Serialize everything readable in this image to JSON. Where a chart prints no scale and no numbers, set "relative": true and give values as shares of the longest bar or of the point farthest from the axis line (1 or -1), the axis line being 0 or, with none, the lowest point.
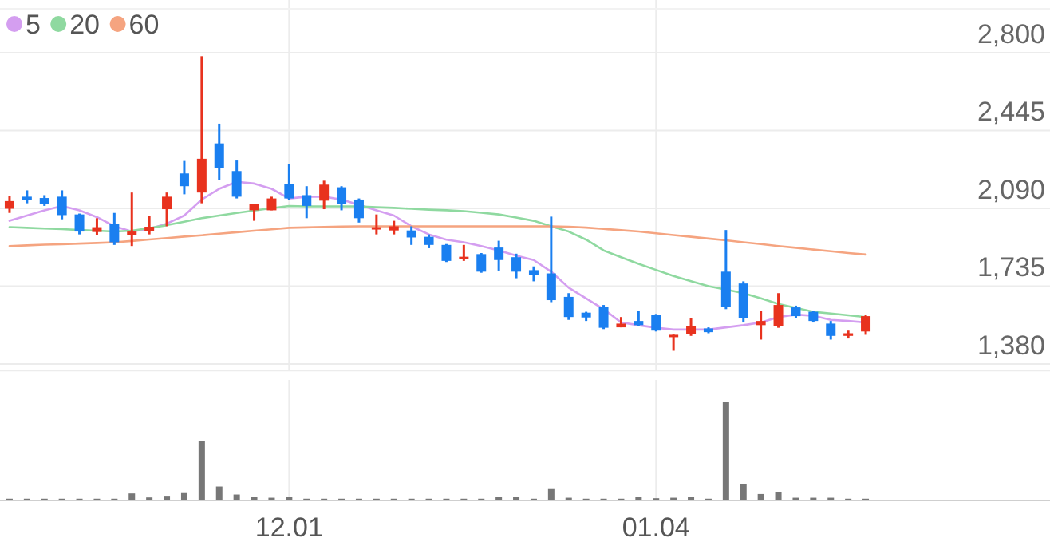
{
  "chart_data": [
    {
      "type": "candlestick",
      "categories": [
        null,
        null,
        null,
        null,
        null,
        null,
        null,
        null,
        null,
        null,
        null,
        null,
        null,
        null,
        null,
        null,
        "12.01",
        null,
        null,
        null,
        null,
        null,
        null,
        null,
        null,
        null,
        null,
        null,
        null,
        null,
        null,
        null,
        null,
        null,
        null,
        null,
        null,
        "01.04",
        null,
        null,
        null,
        null,
        null,
        null,
        null,
        null,
        null,
        null,
        null,
        null
      ],
      "ohlc": [
        [
          2088,
          2147,
          2069,
          2123
        ],
        [
          2143,
          2172,
          2113,
          2128
        ],
        [
          2137,
          2150,
          2101,
          2110
        ],
        [
          2143,
          2172,
          2040,
          2059
        ],
        [
          2062,
          2066,
          1971,
          1984
        ],
        [
          1982,
          2045,
          1967,
          2004
        ],
        [
          2020,
          2069,
          1923,
          1935
        ],
        [
          1967,
          2162,
          1918,
          1984
        ],
        [
          1986,
          2057,
          1971,
          2006
        ],
        [
          2086,
          2162,
          2008,
          2143
        ],
        [
          2249,
          2306,
          2154,
          2191
        ],
        [
          2162,
          2784,
          2113,
          2316
        ],
        [
          2386,
          2476,
          2220,
          2274
        ],
        [
          2260,
          2308,
          2135,
          2143
        ],
        [
          2081,
          2108,
          2033,
          2108
        ],
        [
          2081,
          2143,
          2081,
          2135
        ],
        [
          2201,
          2291,
          2128,
          2135
        ],
        [
          2150,
          2191,
          2045,
          2101
        ],
        [
          2125,
          2216,
          2086,
          2198
        ],
        [
          2186,
          2191,
          2081,
          2110
        ],
        [
          2130,
          2135,
          2025,
          2045
        ],
        [
          1996,
          2062,
          1971,
          2004
        ],
        [
          1989,
          2033,
          1971,
          2008
        ],
        [
          1989,
          2008,
          1923,
          1957
        ],
        [
          1960,
          1971,
          1908,
          1923
        ],
        [
          1923,
          1927,
          1845,
          1850
        ],
        [
          1859,
          1923,
          1850,
          1869
        ],
        [
          1881,
          1886,
          1796,
          1801
        ],
        [
          1911,
          1942,
          1806,
          1854
        ],
        [
          1867,
          1883,
          1771,
          1801
        ],
        [
          1808,
          1825,
          1757,
          1784
        ],
        [
          1793,
          2052,
          1662,
          1671
        ],
        [
          1686,
          1703,
          1581,
          1594
        ],
        [
          1614,
          1618,
          1576,
          1592
        ],
        [
          1642,
          1649,
          1539,
          1545
        ],
        [
          1547,
          1594,
          1547,
          1564
        ],
        [
          1576,
          1623,
          1552,
          1557
        ],
        [
          1605,
          1608,
          1528,
          1532
        ],
        [
          1511,
          1514,
          1440,
          1513
        ],
        [
          1515,
          1588,
          1508,
          1552
        ],
        [
          1542,
          1547,
          1520,
          1525
        ],
        [
          1801,
          1991,
          1630,
          1642
        ],
        [
          1747,
          1757,
          1569,
          1588
        ],
        [
          1557,
          1623,
          1491,
          1576
        ],
        [
          1552,
          1703,
          1545,
          1649
        ],
        [
          1638,
          1646,
          1588,
          1598
        ],
        [
          1618,
          1621,
          1569,
          1576
        ],
        [
          1564,
          1576,
          1491,
          1508
        ],
        [
          1508,
          1532,
          1496,
          1520
        ],
        [
          1528,
          1605,
          1513,
          1598
        ]
      ],
      "colors": [
        "#e8321e",
        "#1a7ff0",
        "#1a7ff0",
        "#1a7ff0",
        "#1a7ff0",
        "#e8321e",
        "#1a7ff0",
        "#e8321e",
        "#e8321e",
        "#e8321e",
        "#1a7ff0",
        "#e8321e",
        "#1a7ff0",
        "#1a7ff0",
        "#e8321e",
        "#e8321e",
        "#1a7ff0",
        "#1a7ff0",
        "#e8321e",
        "#1a7ff0",
        "#1a7ff0",
        "#e8321e",
        "#e8321e",
        "#1a7ff0",
        "#1a7ff0",
        "#1a7ff0",
        "#e8321e",
        "#1a7ff0",
        "#1a7ff0",
        "#1a7ff0",
        "#1a7ff0",
        "#1a7ff0",
        "#1a7ff0",
        "#1a7ff0",
        "#1a7ff0",
        "#e8321e",
        "#1a7ff0",
        "#1a7ff0",
        "#e8321e",
        "#e8321e",
        "#1a7ff0",
        "#1a7ff0",
        "#1a7ff0",
        "#e8321e",
        "#e8321e",
        "#1a7ff0",
        "#1a7ff0",
        "#1a7ff0",
        "#e8321e",
        "#e8321e"
      ],
      "series": [
        {
          "name": "5",
          "type": "line",
          "color": "#d49ef0",
          "values": [
            2033,
            2057,
            2081,
            2101,
            2081,
            2050,
            2008,
            1984,
            1996,
            2020,
            2057,
            2130,
            2179,
            2211,
            2203,
            2179,
            2135,
            2143,
            2143,
            2130,
            2106,
            2081,
            2057,
            2008,
            1971,
            1947,
            1935,
            1918,
            1898,
            1874,
            1854,
            1801,
            1728,
            1679,
            1630,
            1569,
            1557,
            1545,
            1537,
            1537,
            1537,
            1547,
            1557,
            1569,
            1594,
            1605,
            1600,
            1581,
            1576,
            1569
          ]
        },
        {
          "name": "20",
          "type": "line",
          "color": "#8fd9a0",
          "values": [
            2004,
            2001,
            1998,
            1995,
            1991,
            1988,
            1984,
            1988,
            2000,
            2013,
            2029,
            2045,
            2057,
            2069,
            2080,
            2091,
            2101,
            2099,
            2099,
            2099,
            2099,
            2095,
            2092,
            2088,
            2084,
            2081,
            2077,
            2070,
            2062,
            2048,
            2033,
            2008,
            1984,
            1947,
            1898,
            1867,
            1837,
            1809,
            1781,
            1758,
            1735,
            1719,
            1703,
            1679,
            1654,
            1636,
            1618,
            1610,
            1602,
            1594
          ]
        },
        {
          "name": "60",
          "type": "line",
          "color": "#f5a480",
          "values": [
            1918,
            1921,
            1924,
            1926,
            1929,
            1932,
            1935,
            1941,
            1948,
            1954,
            1961,
            1967,
            1974,
            1981,
            1988,
            1994,
            2001,
            2003,
            2005,
            2007,
            2008,
            2008,
            2008,
            2008,
            2008,
            2008,
            2008,
            2008,
            2008,
            2008,
            2008,
            2008,
            2006,
            2002,
            1996,
            1990,
            1984,
            1976,
            1968,
            1960,
            1952,
            1944,
            1935,
            1927,
            1918,
            1910,
            1902,
            1894,
            1886,
            1879
          ]
        }
      ],
      "ylim": [
        1350,
        3000
      ],
      "yticks": [
        {
          "value": 1380,
          "label": "1,380"
        },
        {
          "value": 1735,
          "label": "1,735"
        },
        {
          "value": 2090,
          "label": "2,090"
        },
        {
          "value": 2445,
          "label": "2,445"
        },
        {
          "value": 2800,
          "label": "2,800"
        }
      ],
      "grid": true,
      "legend": "top left",
      "tick_labels": "y"
    },
    {
      "type": "bar",
      "categories": [
        null,
        null,
        null,
        null,
        null,
        null,
        null,
        null,
        null,
        null,
        null,
        null,
        null,
        null,
        null,
        null,
        "12.01",
        null,
        null,
        null,
        null,
        null,
        null,
        null,
        null,
        null,
        null,
        null,
        null,
        null,
        null,
        null,
        null,
        null,
        null,
        null,
        null,
        "01.04",
        null,
        null,
        null,
        null,
        null,
        null,
        null,
        null,
        null,
        null,
        null,
        null
      ],
      "values": [
        0.01,
        0.01,
        0.01,
        0.01,
        0.01,
        0.01,
        0.01,
        0.064,
        0.023,
        0.04,
        0.076,
        0.6,
        0.135,
        0.053,
        0.03,
        0.02,
        0.03,
        0.01,
        0.01,
        0.01,
        0.01,
        0.01,
        0.01,
        0.01,
        0.01,
        0.01,
        0.01,
        0.01,
        0.03,
        0.03,
        0.01,
        0.117,
        0.02,
        0.01,
        0.01,
        0.01,
        0.03,
        0.015,
        0.02,
        0.03,
        0.01,
        1,
        0.164,
        0.058,
        0.082,
        0.02,
        0.02,
        0.02,
        0.01,
        0.01
      ],
      "color": "#777777",
      "relative": true,
      "grid": "x",
      "tick_labels": "x"
    }
  ]
}
